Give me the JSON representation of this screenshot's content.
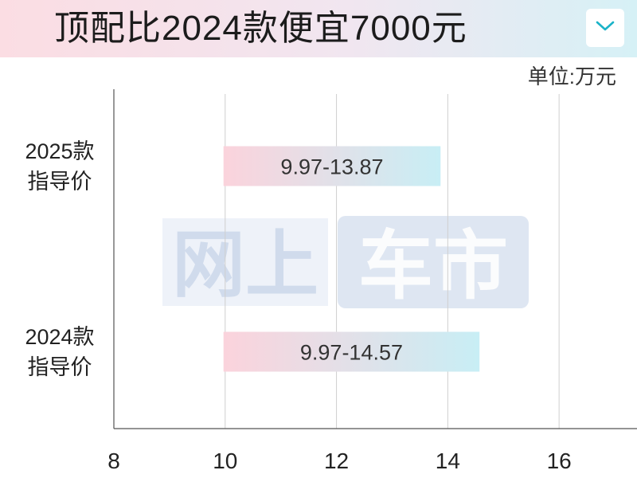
{
  "header": {
    "title": "顶配比2024款便宜7000元"
  },
  "unit_label": "单位:万元",
  "watermark": {
    "text_a": "网上",
    "text_b": "车市"
  },
  "icons": {
    "dropdown": "chevron-down-icon"
  },
  "colors": {
    "bar_start": "#fbd3dc",
    "bar_end": "#c8eef5",
    "accent": "#1bb3c8"
  },
  "chart_data": {
    "type": "bar",
    "orientation": "horizontal",
    "categories": [
      {
        "line1": "2025款",
        "line2": "指导价"
      },
      {
        "line1": "2024款",
        "line2": "指导价"
      }
    ],
    "ranges": [
      {
        "low": 9.97,
        "high": 13.87,
        "label": "9.97-13.87"
      },
      {
        "low": 9.97,
        "high": 14.57,
        "label": "9.97-14.57"
      }
    ],
    "xlim": [
      8,
      17.4
    ],
    "xticks": [
      8,
      10,
      12,
      14,
      16
    ],
    "grid": true
  }
}
